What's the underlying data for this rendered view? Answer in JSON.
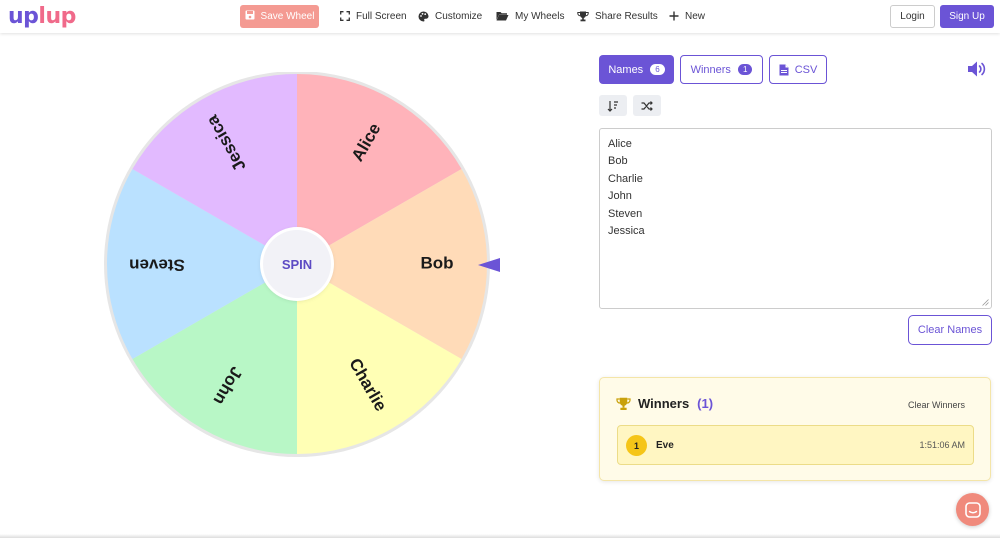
{
  "brand": {
    "part1": "up",
    "part2": "lup"
  },
  "nav": {
    "save_wheel": "Save Wheel",
    "full_screen": "Full Screen",
    "customize": "Customize",
    "my_wheels": "My Wheels",
    "share_results": "Share Results",
    "new": "New",
    "login": "Login",
    "signup": "Sign Up"
  },
  "wheel": {
    "spin_label": "SPIN",
    "segments": [
      {
        "label": "Alice",
        "color": "#ffb3ba"
      },
      {
        "label": "Bob",
        "color": "#ffdbb8"
      },
      {
        "label": "Charlie",
        "color": "#ffffb5"
      },
      {
        "label": "John",
        "color": "#b8f7c6"
      },
      {
        "label": "Steven",
        "color": "#bae1ff"
      },
      {
        "label": "Jessica",
        "color": "#e2baff"
      }
    ],
    "pointer_color": "#6b54d6"
  },
  "tabs": {
    "names": {
      "label": "Names",
      "count": "6"
    },
    "winners": {
      "label": "Winners",
      "count": "1"
    },
    "csv": {
      "label": "CSV"
    }
  },
  "names_list": [
    "Alice",
    "Bob",
    "Charlie",
    "John",
    "Steven",
    "Jessica"
  ],
  "clear_names": "Clear Names",
  "winners_panel": {
    "title": "Winners",
    "count": "(1)",
    "clear": "Clear Winners",
    "entries": [
      {
        "rank": "1",
        "name": "Eve",
        "time": "1:51:06 AM"
      }
    ]
  },
  "colors": {
    "accent": "#6b54d6",
    "save": "#f49a92",
    "gold": "#f5c518"
  }
}
